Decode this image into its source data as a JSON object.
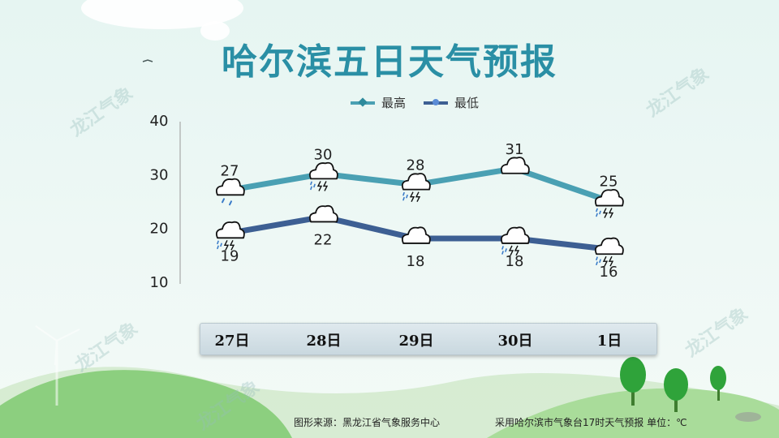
{
  "title": "哈尔滨五日天气预报",
  "legend": {
    "high": "最高",
    "low": "最低"
  },
  "colors": {
    "high": "#4aa0b3",
    "low": "#3d5f93",
    "title": "#2a8fa5"
  },
  "chart_data": {
    "type": "line",
    "categories": [
      "27日",
      "28日",
      "29日",
      "30日",
      "1日"
    ],
    "series": [
      {
        "name": "最高",
        "values": [
          27,
          30,
          28,
          31,
          25
        ]
      },
      {
        "name": "最低",
        "values": [
          19,
          22,
          18,
          18,
          16
        ]
      }
    ],
    "ylim": [
      10,
      40
    ],
    "yticks": [
      10,
      20,
      30,
      40
    ],
    "grid": false,
    "legend_position": "top-center",
    "weather_icons": {
      "high": [
        "cloud-light-rain-icon",
        "cloud-thunderstorm-icon",
        "cloud-thunderstorm-icon",
        "cloud-icon",
        "cloud-thunderstorm-icon"
      ],
      "low": [
        "cloud-thunderstorm-icon",
        "cloud-icon",
        "cloud-icon",
        "cloud-thunderstorm-icon",
        "cloud-thunderstorm-icon"
      ]
    }
  },
  "dates": [
    "27日",
    "28日",
    "29日",
    "30日",
    "1日"
  ],
  "watermark": "龙江气象",
  "footer": {
    "source": "图形来源：黑龙江省气象服务中心",
    "note": "采用哈尔滨市气象台17时天气预报 单位：℃"
  }
}
